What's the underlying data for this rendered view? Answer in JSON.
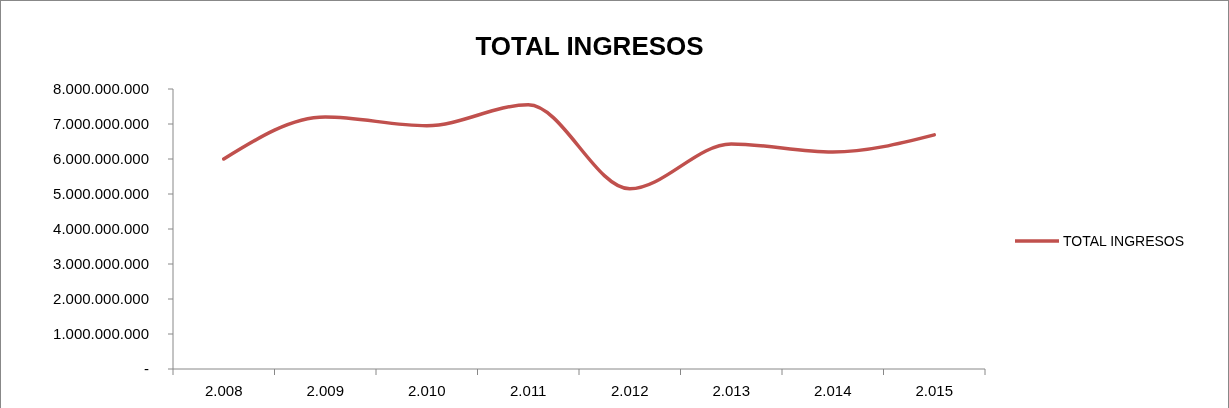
{
  "chart_data": {
    "type": "line",
    "title": "TOTAL INGRESOS",
    "categories": [
      "2.008",
      "2.009",
      "2.010",
      "2.011",
      "2.012",
      "2.013",
      "2.014",
      "2.015"
    ],
    "series": [
      {
        "name": "TOTAL INGRESOS",
        "color": "#c0504d",
        "values": [
          6000000000,
          7200000000,
          6950000000,
          7550000000,
          5150000000,
          6430000000,
          6200000000,
          6690000000
        ]
      }
    ],
    "ylim": [
      0,
      8000000000
    ],
    "yticks": [
      {
        "value": 0,
        "label": "-"
      },
      {
        "value": 1000000000,
        "label": "1.000.000.000"
      },
      {
        "value": 2000000000,
        "label": "2.000.000.000"
      },
      {
        "value": 3000000000,
        "label": "3.000.000.000"
      },
      {
        "value": 4000000000,
        "label": "4.000.000.000"
      },
      {
        "value": 5000000000,
        "label": "5.000.000.000"
      },
      {
        "value": 6000000000,
        "label": "6.000.000.000"
      },
      {
        "value": 7000000000,
        "label": "7.000.000.000"
      },
      {
        "value": 8000000000,
        "label": "8.000.000.000"
      }
    ],
    "legend": "right",
    "grid": false,
    "marker": "none",
    "line_style": "solid"
  }
}
